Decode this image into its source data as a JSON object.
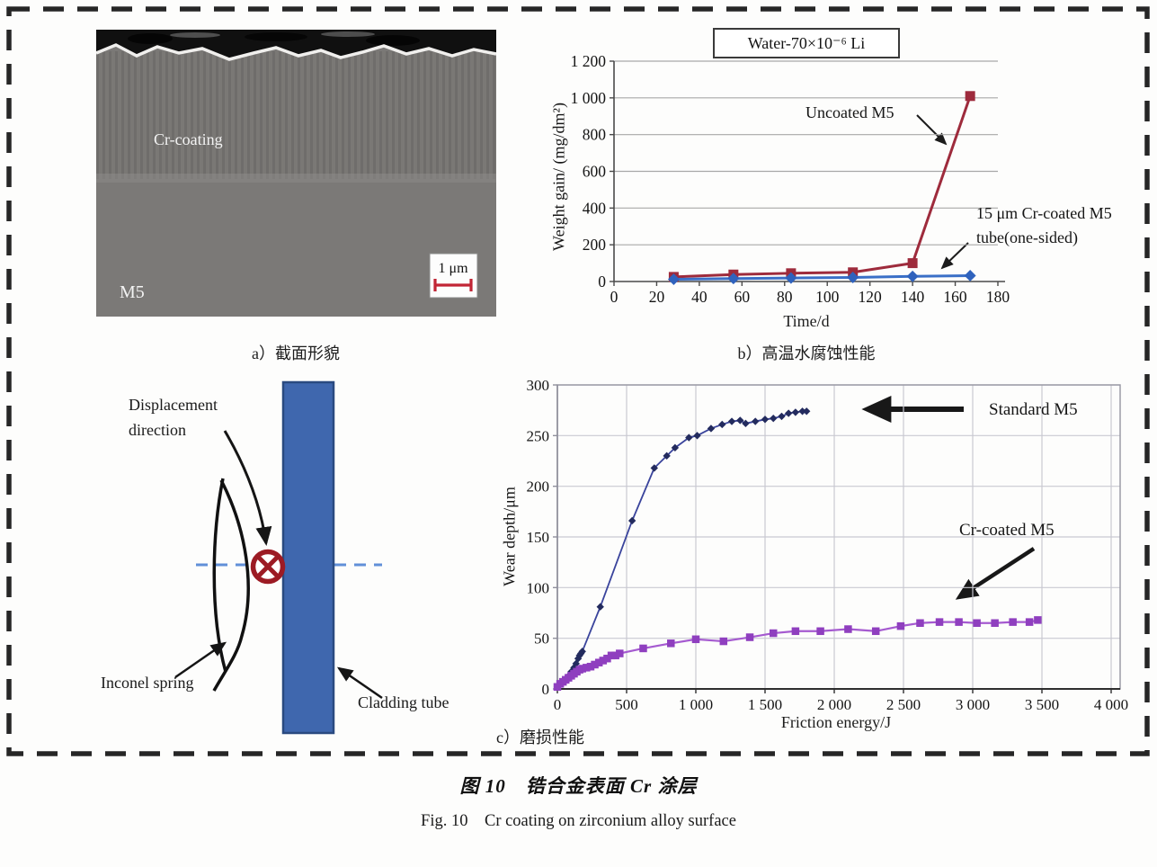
{
  "figure_caption": {
    "zh": "图 10　锆合金表面 Cr 涂层",
    "en": "Fig. 10　Cr coating on zirconium alloy surface"
  },
  "panel_a": {
    "caption": "a）截面形貌",
    "labels": {
      "coating": "Cr-coating",
      "substrate": "M5",
      "scale_bar": "1 μm"
    }
  },
  "panel_b": {
    "caption": "b）高温水腐蚀性能"
  },
  "panel_c": {
    "caption": "c）磨损性能"
  },
  "diagram": {
    "labels": {
      "displacement_direction": "Displacement direction",
      "inconel_spring": "Inconel spring",
      "cladding_tube": "Cladding tube"
    },
    "colors": {
      "tube_fill": "#3f67ae",
      "tube_border": "#2a4a80",
      "contact_symbol": "#9c1b24",
      "centerline": "#6190d8"
    }
  },
  "chart_data": [
    {
      "id": "corrosion-chart",
      "type": "line",
      "title": "Water-70×10⁻⁶ Li",
      "xlabel": "Time/d",
      "ylabel": "Weight gain/ (mg/dm²)",
      "xlim": [
        0,
        180
      ],
      "ylim": [
        0,
        1200
      ],
      "grid": "h",
      "legend_position": "inline-annotations",
      "xticks": {
        "values": [
          0,
          20,
          40,
          60,
          80,
          100,
          120,
          140,
          160,
          180
        ],
        "labels": [
          "0",
          "20",
          "40",
          "60",
          "80",
          "100",
          "120",
          "140",
          "160",
          "180"
        ]
      },
      "yticks": {
        "values": [
          0,
          200,
          400,
          600,
          800,
          1000,
          1200
        ],
        "labels": [
          "0",
          "200",
          "400",
          "600",
          "800",
          "1 000",
          "1 200"
        ]
      },
      "series": [
        {
          "name": "Uncoated M5",
          "color": "#9e2b3c",
          "marker_color": "#9e2b3c",
          "marker": "square",
          "points": [
            [
              28,
              25
            ],
            [
              56,
              38
            ],
            [
              83,
              45
            ],
            [
              112,
              50
            ],
            [
              140,
              100
            ],
            [
              167,
              1010
            ]
          ]
        },
        {
          "name": "15 μm Cr-coated M5 tube(one-sided)",
          "color": "#3a6fc7",
          "marker_color": "#2f62bd",
          "marker": "diamond",
          "points": [
            [
              28,
              12
            ],
            [
              56,
              16
            ],
            [
              83,
              19
            ],
            [
              112,
              22
            ],
            [
              140,
              28
            ],
            [
              167,
              32
            ]
          ]
        }
      ],
      "annotations": {
        "uncoated_label": "Uncoated M5",
        "coated_label": "15 μm Cr-coated M5\ntube(one-sided)"
      }
    },
    {
      "id": "wear-chart",
      "type": "line",
      "title": "",
      "xlabel": "Friction energy/J",
      "ylabel": "Wear depth/μm",
      "xlim": [
        0,
        4000
      ],
      "ylim": [
        0,
        300
      ],
      "grid": "hv",
      "legend_position": "inline-annotations",
      "xticks": {
        "values": [
          0,
          500,
          1000,
          1500,
          2000,
          2500,
          3000,
          3500,
          4000
        ],
        "labels": [
          "0",
          "500",
          "1 000",
          "1 500",
          "2 000",
          "2 500",
          "3 000",
          "3 500",
          "4 000"
        ]
      },
      "yticks": {
        "values": [
          0,
          50,
          100,
          150,
          200,
          250,
          300
        ],
        "labels": [
          "0",
          "50",
          "100",
          "150",
          "200",
          "250",
          "300"
        ]
      },
      "series": [
        {
          "name": "Standard M5",
          "color": "#3a449c",
          "marker_color": "#232b5e",
          "marker": "diamond",
          "points": [
            [
              0,
              2
            ],
            [
              25,
              5
            ],
            [
              50,
              8
            ],
            [
              75,
              12
            ],
            [
              100,
              17
            ],
            [
              120,
              21
            ],
            [
              135,
              25
            ],
            [
              150,
              30
            ],
            [
              160,
              33
            ],
            [
              170,
              35
            ],
            [
              180,
              37
            ],
            [
              310,
              81
            ],
            [
              540,
              166
            ],
            [
              700,
              218
            ],
            [
              790,
              230
            ],
            [
              850,
              238
            ],
            [
              950,
              248
            ],
            [
              1010,
              250
            ],
            [
              1110,
              257
            ],
            [
              1190,
              261
            ],
            [
              1260,
              264
            ],
            [
              1320,
              265
            ],
            [
              1360,
              262
            ],
            [
              1430,
              264
            ],
            [
              1500,
              266
            ],
            [
              1560,
              267
            ],
            [
              1620,
              269
            ],
            [
              1670,
              272
            ],
            [
              1720,
              273
            ],
            [
              1770,
              274
            ],
            [
              1800,
              274
            ]
          ]
        },
        {
          "name": "Cr-coated M5",
          "color": "#a55ad0",
          "marker_color": "#8f3fbf",
          "marker": "square",
          "points": [
            [
              0,
              2
            ],
            [
              20,
              5
            ],
            [
              40,
              7
            ],
            [
              60,
              9
            ],
            [
              80,
              11
            ],
            [
              100,
              13
            ],
            [
              120,
              15
            ],
            [
              140,
              17
            ],
            [
              160,
              19
            ],
            [
              180,
              20
            ],
            [
              210,
              21
            ],
            [
              240,
              22
            ],
            [
              270,
              24
            ],
            [
              300,
              26
            ],
            [
              330,
              28
            ],
            [
              360,
              30
            ],
            [
              390,
              33
            ],
            [
              420,
              33
            ],
            [
              450,
              35
            ],
            [
              620,
              40
            ],
            [
              820,
              45
            ],
            [
              1000,
              49
            ],
            [
              1200,
              47
            ],
            [
              1390,
              51
            ],
            [
              1560,
              55
            ],
            [
              1720,
              57
            ],
            [
              1900,
              57
            ],
            [
              2100,
              59
            ],
            [
              2300,
              57
            ],
            [
              2480,
              62
            ],
            [
              2620,
              65
            ],
            [
              2760,
              66
            ],
            [
              2900,
              66
            ],
            [
              3030,
              65
            ],
            [
              3160,
              65
            ],
            [
              3290,
              66
            ],
            [
              3410,
              66
            ],
            [
              3470,
              68
            ]
          ]
        }
      ],
      "annotations": {
        "standard_label": "Standard M5",
        "coated_label": "Cr-coated M5"
      }
    }
  ]
}
